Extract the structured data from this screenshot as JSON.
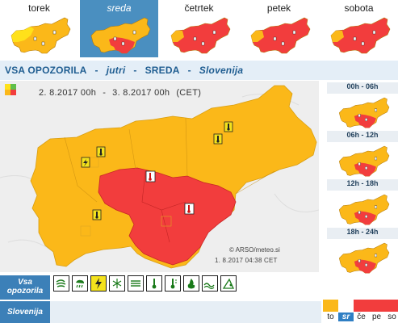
{
  "colors": {
    "yellow": "#ffe11a",
    "orange": "#fbb819",
    "red": "#f23d3d",
    "active_tab": "#4a8fc0",
    "header_text": "#1f5d91"
  },
  "day_tabs": [
    {
      "label": "torek",
      "active": false,
      "scheme": "torek"
    },
    {
      "label": "sreda",
      "active": true,
      "scheme": "sreda"
    },
    {
      "label": "četrtek",
      "active": false,
      "scheme": "red"
    },
    {
      "label": "petek",
      "active": false,
      "scheme": "red"
    },
    {
      "label": "sobota",
      "active": false,
      "scheme": "red"
    }
  ],
  "header": {
    "part1": "VSA OPOZORILA",
    "sep1": "-",
    "part2": "jutri",
    "sep2": "-",
    "part3": "SREDA",
    "sep3": "-",
    "part4": "Slovenija"
  },
  "period": {
    "from": "2. 8.2017  00h",
    "dash": "-",
    "to": "3. 8.2017  00h",
    "zone": "(CET)"
  },
  "credit": "© ARSO/meteo.si",
  "issued": "1. 8.2017  04:38 CET",
  "time_slots": [
    {
      "label": "00h - 06h"
    },
    {
      "label": "06h - 12h"
    },
    {
      "label": "12h - 18h"
    },
    {
      "label": "18h - 24h"
    }
  ],
  "bottom": {
    "vsa_line1": "Vsa",
    "vsa_line2": "opozorila",
    "slovenija": "Slovenija"
  },
  "hazard_icons": [
    {
      "icon": "wind-icon",
      "active": false
    },
    {
      "icon": "rain-icon",
      "active": false
    },
    {
      "icon": "thunder-icon",
      "active": true
    },
    {
      "icon": "snow-icon",
      "active": false
    },
    {
      "icon": "fog-icon",
      "active": false
    },
    {
      "icon": "low-temp-icon",
      "active": false
    },
    {
      "icon": "high-temp-icon",
      "active": false
    },
    {
      "icon": "fire-icon",
      "active": false
    },
    {
      "icon": "coastal-icon",
      "active": false
    },
    {
      "icon": "avalanche-icon",
      "active": false
    }
  ],
  "day_boxes": [
    {
      "label": "to",
      "color": "#fbb819",
      "active": false
    },
    {
      "label": "sr",
      "color": "#f23d3d",
      "active": true
    },
    {
      "label": "če",
      "color": "#f23d3d",
      "active": false
    },
    {
      "label": "pe",
      "color": "#f23d3d",
      "active": false
    },
    {
      "label": "so",
      "color": "#f23d3d",
      "active": false
    }
  ]
}
